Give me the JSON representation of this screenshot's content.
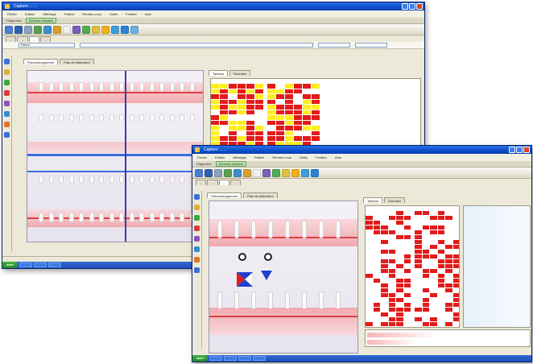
{
  "window_a": {
    "title": "Capture ... ...",
    "menu": [
      "Fichier",
      "Edition",
      "Affichage",
      "Patient",
      "Rendez-vous",
      "Outils",
      "Fenêtre",
      "Aide"
    ],
    "strip": [
      "Diagnostic",
      "Schéma dentaire"
    ],
    "tabs": [
      "...",
      "...",
      "...",
      "..."
    ],
    "patient_field": "Patient",
    "sub_tabs": [
      "Parodontogramme",
      "Plan de traitement"
    ],
    "right_tabs": [
      "Tableau",
      "Données"
    ],
    "status": "..."
  },
  "window_b": {
    "title": "Capture ... ...",
    "menu": [
      "Fichier",
      "Edition",
      "Affichage",
      "Patient",
      "Rendez-vous",
      "Outils",
      "Fenêtre",
      "Aide"
    ],
    "strip": [
      "Diagnostic",
      "Schéma dentaire"
    ],
    "tabs": [
      "...",
      "...",
      "...",
      "..."
    ],
    "sub_tabs": [
      "Parodontogramme",
      "Plan de traitement"
    ],
    "right_tabs": [
      "Tableau",
      "Données"
    ]
  },
  "taskbar": {
    "start_label": "start"
  },
  "colors": {
    "accent": "#0b4fc9",
    "alert_red": "#e31b1b",
    "alert_yellow": "#ffee22",
    "gum": "#f2b3b8"
  }
}
